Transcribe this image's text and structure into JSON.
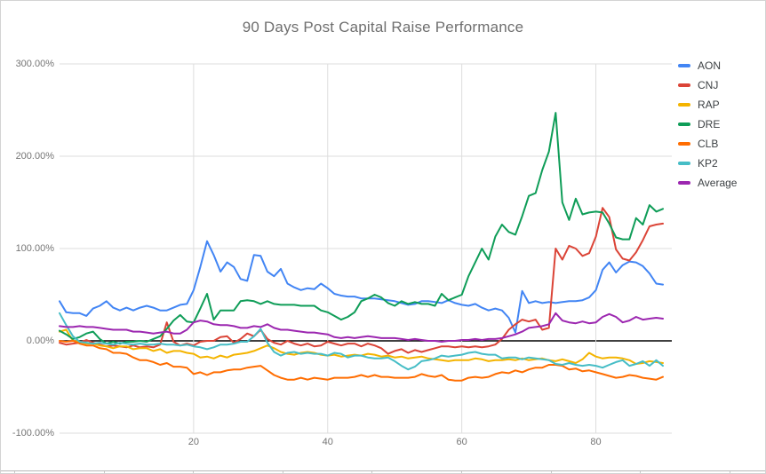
{
  "chart_data": {
    "type": "line",
    "title": "90 Days Post Capital Raise Performance",
    "xlabel": "",
    "ylabel": "",
    "x_range": [
      0,
      90
    ],
    "y_range": [
      -100,
      300
    ],
    "grid": true,
    "legend_position": "right",
    "x_ticks": [
      20,
      40,
      60,
      80
    ],
    "x_tick_labels": [
      "20",
      "40",
      "60",
      "80"
    ],
    "y_tick_values": [
      300,
      200,
      100,
      0,
      -100
    ],
    "y_tick_labels": [
      "300.00%",
      "200.00%",
      "100.00%",
      "0.00%",
      "-100.00%"
    ],
    "baseline_value": 0,
    "series": [
      {
        "name": "AON",
        "color": "#4285F4",
        "values": [
          43,
          31,
          30,
          30,
          27,
          35,
          38,
          43,
          36,
          33,
          36,
          33,
          36,
          38,
          36,
          33,
          33,
          36,
          39,
          40,
          55,
          80,
          108,
          93,
          75,
          85,
          80,
          67,
          65,
          93,
          92,
          75,
          70,
          78,
          62,
          58,
          55,
          57,
          56,
          62,
          57,
          51,
          49,
          48,
          48,
          46,
          46,
          46,
          45,
          44,
          43,
          41,
          39,
          40,
          43,
          43,
          42,
          41,
          44,
          41,
          39,
          38,
          40,
          36,
          33,
          35,
          33,
          25,
          9,
          54,
          41,
          43,
          41,
          42,
          41,
          42,
          43,
          43,
          44,
          47,
          55,
          77,
          85,
          74,
          82,
          86,
          85,
          81,
          73,
          62,
          61
        ]
      },
      {
        "name": "CNJ",
        "color": "#DB4437",
        "values": [
          -2,
          -4,
          -3,
          -2,
          1,
          -2,
          -4,
          -6,
          -5,
          -6,
          -7,
          -5,
          -7,
          -6,
          -7,
          -4,
          20,
          -1,
          -5,
          -3,
          -5,
          -1,
          0,
          0,
          4,
          5,
          -2,
          2,
          8,
          5,
          12,
          2,
          -2,
          -4,
          0,
          -3,
          -5,
          -3,
          -6,
          -5,
          -1,
          -3,
          -5,
          -3,
          -3,
          -6,
          -3,
          -5,
          -8,
          -14,
          -11,
          -9,
          -13,
          -10,
          -12,
          -10,
          -8,
          -6,
          -6,
          -7,
          -6,
          -7,
          -6,
          -7,
          -6,
          -4,
          2,
          12,
          18,
          23,
          21,
          23,
          12,
          14,
          100,
          88,
          103,
          100,
          92,
          95,
          113,
          144,
          134,
          99,
          89,
          87,
          96,
          109,
          124,
          126,
          127
        ]
      },
      {
        "name": "RAP",
        "color": "#F4B400",
        "values": [
          10,
          12,
          0,
          -1,
          -3,
          -3,
          -5,
          -6,
          -8,
          -6,
          -6,
          -9,
          -8,
          -8,
          -11,
          -9,
          -13,
          -11,
          -11,
          -13,
          -14,
          -18,
          -17,
          -19,
          -16,
          -18,
          -15,
          -14,
          -13,
          -11,
          -8,
          -5,
          -8,
          -12,
          -14,
          -15,
          -13,
          -12,
          -13,
          -15,
          -16,
          -15,
          -17,
          -16,
          -15,
          -16,
          -14,
          -15,
          -17,
          -16,
          -18,
          -17,
          -19,
          -18,
          -17,
          -19,
          -20,
          -21,
          -22,
          -21,
          -21,
          -21,
          -19,
          -20,
          -22,
          -21,
          -21,
          -20,
          -21,
          -19,
          -21,
          -20,
          -19,
          -21,
          -22,
          -20,
          -22,
          -24,
          -20,
          -13,
          -17,
          -19,
          -18,
          -18,
          -19,
          -21,
          -25,
          -24,
          -22,
          -23,
          -24
        ]
      },
      {
        "name": "DRE",
        "color": "#0F9D58",
        "values": [
          11,
          7,
          2,
          4,
          8,
          10,
          2,
          -3,
          -1,
          -3,
          -1,
          -1,
          0,
          -1,
          2,
          5,
          13,
          22,
          28,
          21,
          20,
          35,
          51,
          23,
          33,
          33,
          33,
          43,
          44,
          43,
          40,
          43,
          40,
          39,
          39,
          39,
          38,
          38,
          38,
          33,
          31,
          27,
          23,
          26,
          31,
          43,
          46,
          50,
          47,
          41,
          38,
          43,
          40,
          42,
          40,
          40,
          38,
          51,
          44,
          47,
          50,
          70,
          85,
          100,
          88,
          113,
          126,
          118,
          115,
          135,
          157,
          160,
          185,
          205,
          247,
          150,
          131,
          154,
          137,
          139,
          140,
          139,
          127,
          112,
          110,
          110,
          133,
          126,
          147,
          140,
          143
        ]
      },
      {
        "name": "CLB",
        "color": "#FF6D01",
        "values": [
          0,
          -1,
          0,
          -3,
          -5,
          -5,
          -8,
          -9,
          -13,
          -13,
          -14,
          -18,
          -21,
          -21,
          -23,
          -26,
          -24,
          -28,
          -28,
          -29,
          -36,
          -34,
          -37,
          -34,
          -34,
          -32,
          -31,
          -31,
          -29,
          -28,
          -27,
          -32,
          -37,
          -40,
          -42,
          -42,
          -40,
          -42,
          -40,
          -41,
          -42,
          -40,
          -40,
          -40,
          -39,
          -37,
          -39,
          -37,
          -39,
          -39,
          -40,
          -40,
          -40,
          -39,
          -36,
          -38,
          -39,
          -37,
          -42,
          -43,
          -43,
          -40,
          -39,
          -40,
          -39,
          -36,
          -34,
          -35,
          -32,
          -34,
          -31,
          -29,
          -29,
          -26,
          -26,
          -27,
          -31,
          -30,
          -33,
          -32,
          -34,
          -36,
          -38,
          -40,
          -39,
          -37,
          -38,
          -40,
          -41,
          -42,
          -39
        ]
      },
      {
        "name": "KP2",
        "color": "#46BDC6",
        "values": [
          30,
          17,
          5,
          -1,
          -2,
          -3,
          -2,
          -3,
          -4,
          -2,
          -3,
          -4,
          -3,
          -4,
          -4,
          -3,
          -4,
          -4,
          -5,
          -4,
          -6,
          -7,
          -9,
          -7,
          -4,
          -4,
          -3,
          -1,
          -1,
          5,
          13,
          -2,
          -12,
          -16,
          -13,
          -12,
          -14,
          -13,
          -14,
          -14,
          -16,
          -13,
          -14,
          -18,
          -16,
          -16,
          -18,
          -19,
          -19,
          -18,
          -22,
          -27,
          -31,
          -28,
          -22,
          -21,
          -19,
          -16,
          -17,
          -16,
          -15,
          -13,
          -12,
          -14,
          -15,
          -15,
          -19,
          -18,
          -18,
          -20,
          -18,
          -19,
          -20,
          -21,
          -25,
          -26,
          -24,
          -26,
          -27,
          -26,
          -27,
          -29,
          -26,
          -23,
          -21,
          -27,
          -25,
          -22,
          -27,
          -21,
          -27
        ]
      },
      {
        "name": "Average",
        "color": "#9C27B0",
        "values": [
          16,
          15,
          15,
          16,
          15,
          15,
          14,
          13,
          12,
          12,
          12,
          10,
          10,
          9,
          8,
          9,
          10,
          8,
          8,
          12,
          20,
          22,
          21,
          18,
          17,
          17,
          16,
          14,
          14,
          16,
          15,
          18,
          14,
          12,
          12,
          11,
          10,
          9,
          9,
          8,
          7,
          4,
          3,
          4,
          3,
          4,
          5,
          4,
          3,
          3,
          3,
          2,
          1,
          2,
          1,
          0,
          0,
          -1,
          0,
          0,
          1,
          1,
          2,
          1,
          2,
          2,
          3,
          5,
          7,
          10,
          14,
          15,
          16,
          18,
          30,
          22,
          20,
          19,
          21,
          19,
          20,
          26,
          29,
          26,
          20,
          22,
          26,
          23,
          24,
          25,
          24
        ]
      }
    ]
  },
  "colors": {
    "grid": "#dddddd",
    "baseline": "#000000",
    "axis_text": "#757575",
    "title_text": "#6f6f6f",
    "legend_text": "#3c4043"
  }
}
